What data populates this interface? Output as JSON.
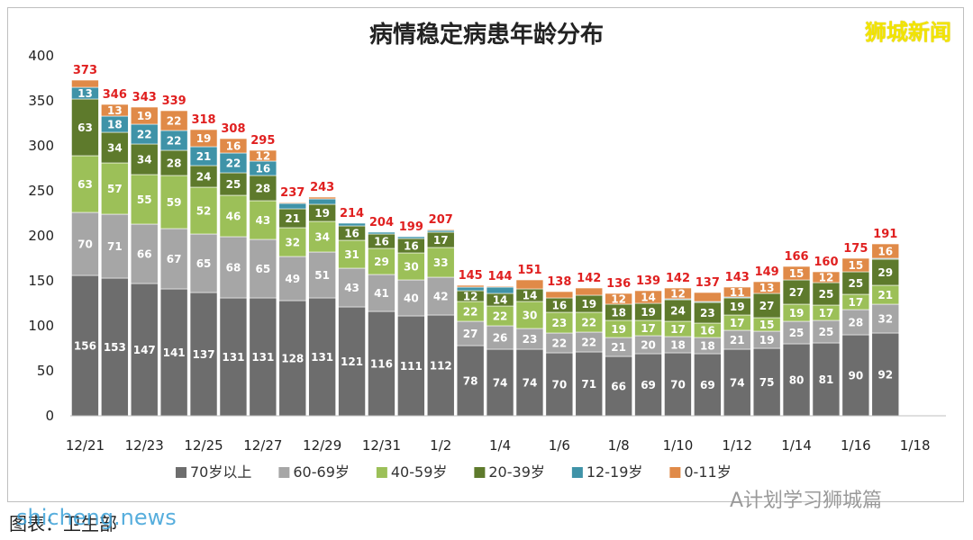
{
  "title": "病情稳定病患年龄分布",
  "brand": "狮城新闻",
  "watermark": "A计划学习狮城篇",
  "source": "图表：卫生部",
  "site": "shicheng.news",
  "colors": {
    "70岁以上": "#6d6d6d",
    "60-69岁": "#a6a6a6",
    "40-59岁": "#9cc058",
    "20-39岁": "#5e7a2c",
    "12-19岁": "#3f93a8",
    "0-11岁": "#e08a48"
  },
  "chart_data": {
    "type": "bar",
    "stacked": true,
    "title": "病情稳定病患年龄分布",
    "ylim": [
      0,
      400
    ],
    "yticks": [
      0,
      50,
      100,
      150,
      200,
      250,
      300,
      350,
      400
    ],
    "categories": [
      "12/21",
      "12/22",
      "12/23",
      "12/24",
      "12/25",
      "12/26",
      "12/27",
      "12/28",
      "12/29",
      "12/30",
      "12/31",
      "1/1",
      "1/2",
      "1/3",
      "1/4",
      "1/5",
      "1/6",
      "1/7",
      "1/8",
      "1/9",
      "1/10",
      "1/11",
      "1/12",
      "1/13",
      "1/14",
      "1/15",
      "1/16",
      "1/17"
    ],
    "xtick_labels": [
      "12/21",
      "12/23",
      "12/25",
      "12/27",
      "12/29",
      "12/31",
      "1/2",
      "1/4",
      "1/6",
      "1/8",
      "1/10",
      "1/12",
      "1/14",
      "1/16",
      "1/18"
    ],
    "legend_position": "bottom",
    "totals": [
      373,
      346,
      343,
      339,
      318,
      308,
      295,
      237,
      243,
      214,
      204,
      199,
      207,
      145,
      144,
      151,
      138,
      142,
      136,
      139,
      142,
      137,
      143,
      149,
      166,
      160,
      175,
      191
    ],
    "series": [
      {
        "name": "70岁以上",
        "values": [
          156,
          153,
          147,
          141,
          137,
          131,
          131,
          128,
          131,
          121,
          116,
          111,
          112,
          78,
          74,
          74,
          70,
          71,
          66,
          69,
          70,
          69,
          74,
          75,
          80,
          81,
          90,
          92
        ]
      },
      {
        "name": "60-69岁",
        "values": [
          70,
          71,
          66,
          67,
          65,
          68,
          65,
          49,
          51,
          43,
          41,
          40,
          42,
          27,
          26,
          23,
          22,
          22,
          21,
          20,
          18,
          18,
          21,
          19,
          25,
          25,
          28,
          32
        ]
      },
      {
        "name": "40-59岁",
        "values": [
          63,
          57,
          55,
          59,
          52,
          46,
          43,
          32,
          34,
          31,
          29,
          30,
          33,
          22,
          22,
          30,
          23,
          22,
          19,
          17,
          17,
          16,
          17,
          15,
          19,
          17,
          17,
          21
        ]
      },
      {
        "name": "20-39岁",
        "values": [
          63,
          34,
          34,
          28,
          24,
          25,
          28,
          21,
          19,
          16,
          16,
          16,
          17,
          12,
          14,
          14,
          16,
          19,
          18,
          19,
          24,
          23,
          19,
          27,
          27,
          25,
          25,
          29
        ]
      },
      {
        "name": "12-19岁",
        "values": [
          13,
          18,
          22,
          22,
          21,
          22,
          16,
          6,
          6,
          3,
          2,
          2,
          2,
          4,
          7,
          0,
          0,
          0,
          0,
          0,
          1,
          1,
          1,
          0,
          0,
          0,
          0,
          1
        ]
      },
      {
        "name": "0-11岁",
        "values": [
          8,
          13,
          19,
          22,
          19,
          16,
          12,
          1,
          2,
          0,
          0,
          0,
          1,
          2,
          1,
          10,
          7,
          8,
          12,
          14,
          12,
          10,
          11,
          13,
          15,
          12,
          15,
          16
        ]
      }
    ]
  }
}
